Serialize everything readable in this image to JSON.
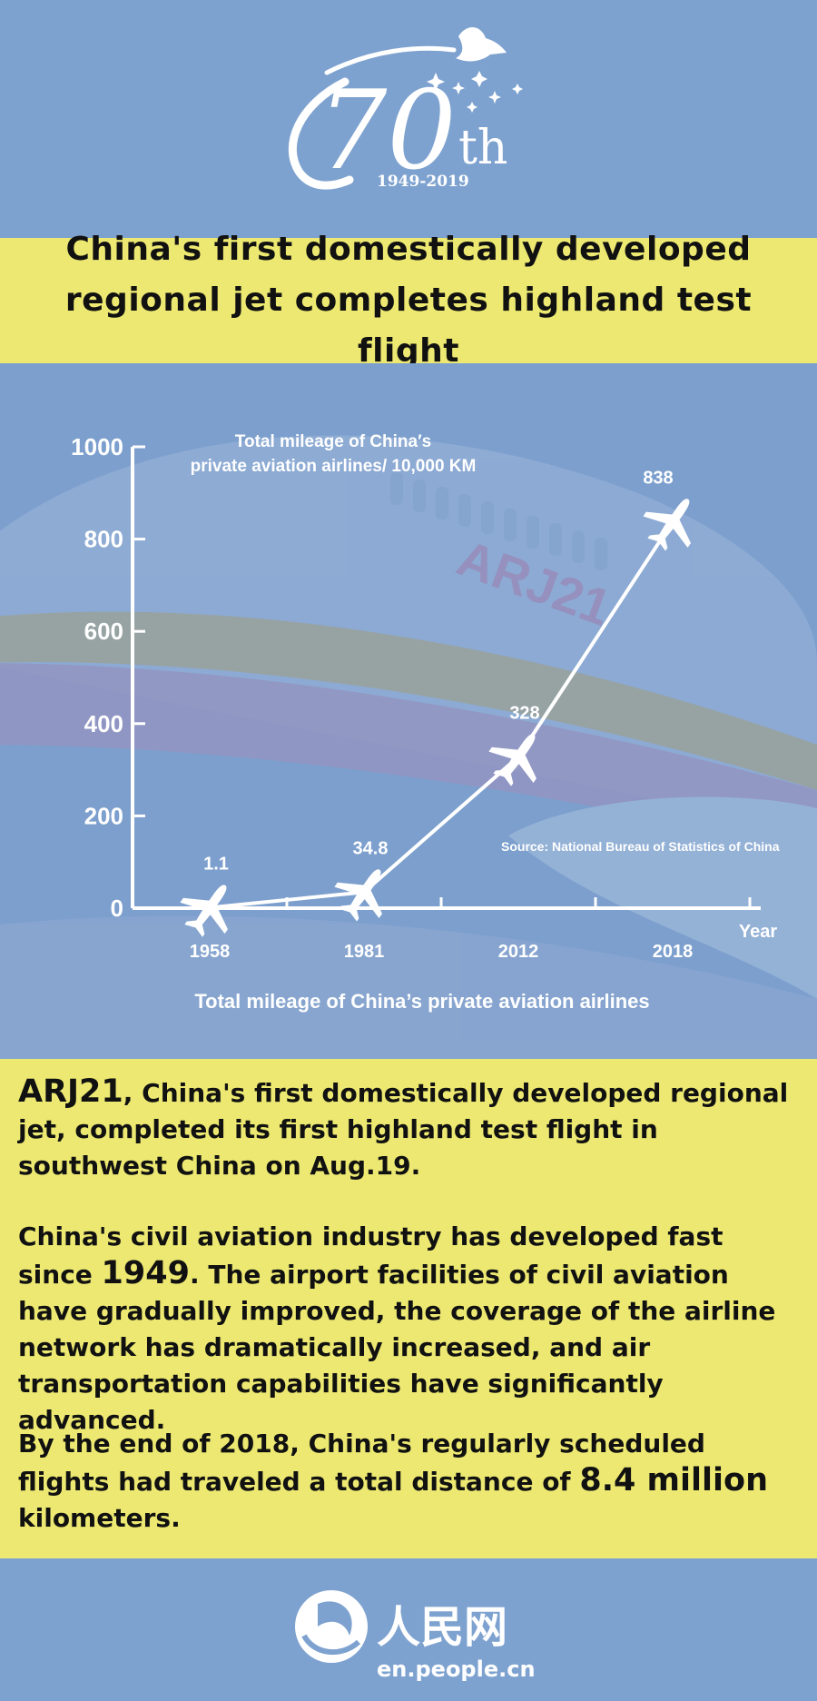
{
  "header": {
    "logo_number": "70",
    "logo_suffix": "th",
    "logo_years": "1949-2019"
  },
  "title": {
    "line1": "China's first domestically developed",
    "line2": "regional jet completes highland test flight"
  },
  "chart_data": {
    "type": "line",
    "title": "Total mileage of China′s private aviation airlines/ 10,000 KM",
    "title_line1": "Total mileage of China′s",
    "title_line2": "private aviation airlines/ 10,000 KM",
    "caption": "Total mileage of China’s private aviation airlines",
    "xlabel": "Year",
    "ylabel": "",
    "categories": [
      "1958",
      "1981",
      "2012",
      "2018"
    ],
    "values": [
      1.1,
      34.8,
      328,
      838
    ],
    "value_labels": [
      "1.1",
      "34.8",
      "328",
      "838"
    ],
    "ylim": [
      0,
      1000
    ],
    "yticks": [
      "0",
      "200",
      "400",
      "600",
      "800",
      "1000"
    ],
    "source": "Source: National Bureau of Statistics of China",
    "grid": false,
    "background_text": "ARJ21",
    "colors": {
      "line": "#ffffff",
      "axis": "#ffffff",
      "bg": "#7c9fcd"
    }
  },
  "body": {
    "p1_lead": "ARJ21",
    "p1_rest": ", China's first domestically developed regional jet, completed its first highland test flight in southwest China on Aug.19.",
    "p2_a": "China's civil aviation industry has developed fast since ",
    "p2_year": "1949",
    "p2_b": ". The airport facilities of civil aviation have gradually improved, the coverage of the airline network has dramatically increased, and air transportation capabilities have significantly advanced.",
    "p3_a": "By the end of 2018, China's regularly scheduled flights had traveled a total distance of ",
    "p3_big": "8.4 million",
    "p3_b": " kilometers."
  },
  "footer": {
    "brand_cn": "人民网",
    "url": "en.people.cn"
  },
  "colors": {
    "yellow": "#ece871",
    "blue": "#7ea2cf",
    "text": "#111111"
  }
}
